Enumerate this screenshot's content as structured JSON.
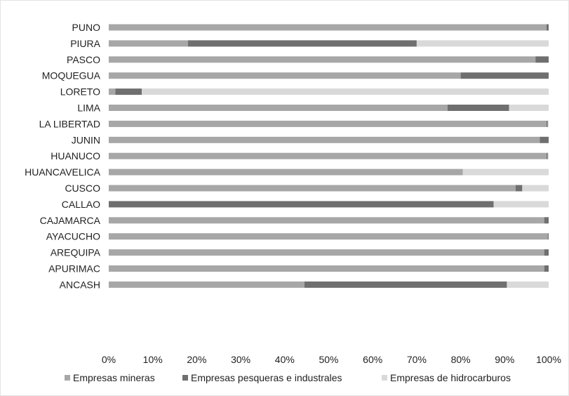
{
  "chart_data": {
    "type": "bar",
    "orientation": "horizontal",
    "stacked": "percent",
    "categories": [
      "PUNO",
      "PIURA",
      "PASCO",
      "MOQUEGUA",
      "LORETO",
      "LIMA",
      "LA LIBERTAD",
      "JUNIN",
      "HUANUCO",
      "HUANCAVELICA",
      "CUSCO",
      "CALLAO",
      "CAJAMARCA",
      "AYACUCHO",
      "AREQUIPA",
      "APURIMAC",
      "ANCASH"
    ],
    "series": [
      {
        "name": "Empresas mineras",
        "color": "#a7a7a7",
        "values": [
          99.5,
          18,
          97,
          80,
          1.5,
          77,
          99.5,
          98,
          99.5,
          80.5,
          92.5,
          0,
          99,
          99.8,
          99,
          99,
          44.5
        ]
      },
      {
        "name": "Empresas pesqueras e industrales",
        "color": "#6f6f6f",
        "values": [
          0.5,
          52,
          3,
          20,
          6,
          14,
          0.3,
          2,
          0.3,
          0,
          1.5,
          87.5,
          1,
          0.2,
          1,
          1,
          46
        ]
      },
      {
        "name": "Empresas de hidrocarburos",
        "color": "#d9d9d9",
        "values": [
          0,
          30,
          0,
          0,
          92.5,
          9,
          0.2,
          0,
          0.2,
          19.5,
          6,
          12.5,
          0,
          0,
          0,
          0,
          9.5
        ]
      }
    ],
    "xlim": [
      0,
      100
    ],
    "x_ticks": [
      "0%",
      "10%",
      "20%",
      "30%",
      "40%",
      "50%",
      "60%",
      "70%",
      "80%",
      "90%",
      "100%"
    ],
    "legend_position": "bottom",
    "grid": false
  }
}
